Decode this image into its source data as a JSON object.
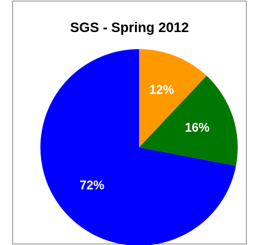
{
  "chart_data": {
    "type": "pie",
    "title": "SGS - Spring 2012",
    "slices": [
      {
        "label": "12%",
        "value": 12,
        "color": "#FF9900"
      },
      {
        "label": "16%",
        "value": 16,
        "color": "#007700"
      },
      {
        "label": "72%",
        "value": 72,
        "color": "#0000FF"
      }
    ],
    "start_angle": "top (12 o'clock)",
    "direction": "clockwise",
    "legend": "none"
  }
}
